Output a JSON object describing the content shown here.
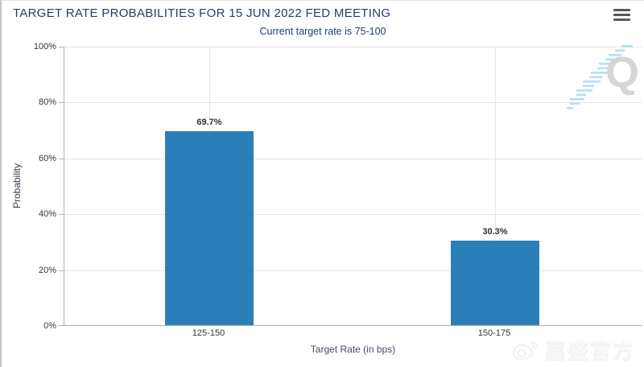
{
  "header": {
    "title": "TARGET RATE PROBABILITIES FOR 15 JUN 2022 FED MEETING",
    "menu_icon": "hamburger-menu-icon"
  },
  "chart_data": {
    "type": "bar",
    "title": "TARGET RATE PROBABILITIES FOR 15 JUN 2022 FED MEETING",
    "subtitle": "Current target rate is 75-100",
    "categories": [
      "125-150",
      "150-175"
    ],
    "values": [
      69.7,
      30.3
    ],
    "value_labels": [
      "69.7%",
      "30.3%"
    ],
    "xlabel": "Target Rate (in bps)",
    "ylabel": "Probability",
    "ylim": [
      0,
      100
    ],
    "ytick_labels": [
      "0%",
      "20%",
      "40%",
      "60%",
      "80%",
      "100%"
    ],
    "grid": true,
    "legend": "none",
    "bar_color": "#2b7fb9"
  },
  "watermarks": {
    "q_letter": "Q",
    "weibo_text": "嘉盛官方"
  },
  "colors": {
    "title_text": "#223e6e",
    "bar": "#2b7fb9",
    "axis_line": "#b0b0b8",
    "gridline": "#e6e6e6"
  }
}
